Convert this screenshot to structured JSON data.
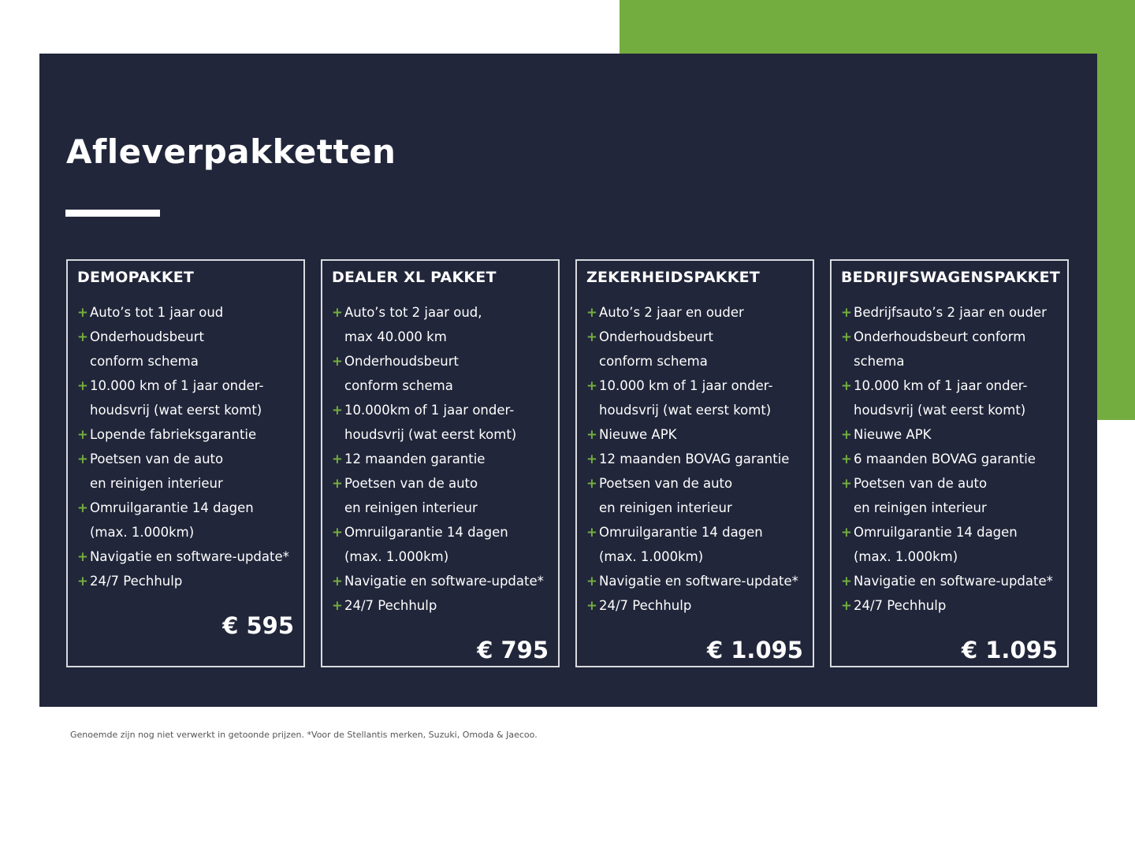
{
  "colors": {
    "navy": "#21263a",
    "green": "#74ad3f",
    "plus": "#74ad3f"
  },
  "title": "Afleverpakketten",
  "packages": [
    {
      "name": "DEMOPAKKET",
      "price": "€ 595",
      "items": [
        "Auto’s tot 1 jaar oud",
        "Onderhoudsbeurt\nconform schema",
        "10.000 km of 1 jaar onder-\nhoudsvrij (wat eerst komt)",
        "Lopende fabrieksgarantie",
        "Poetsen van de auto\nen reinigen interieur",
        "Omruilgarantie 14 dagen\n(max. 1.000km)",
        "Navigatie en software-update*",
        "24/7 Pechhulp"
      ]
    },
    {
      "name": "DEALER XL PAKKET",
      "price": "€ 795",
      "items": [
        "Auto’s tot 2 jaar oud,\nmax 40.000 km",
        "Onderhoudsbeurt\nconform schema",
        "10.000km of 1 jaar onder-\nhoudsvrij (wat eerst komt)",
        "12 maanden garantie",
        "Poetsen van de auto\nen reinigen interieur",
        "Omruilgarantie 14 dagen\n(max. 1.000km)",
        "Navigatie en software-update*",
        "24/7 Pechhulp"
      ]
    },
    {
      "name": "ZEKERHEIDSPAKKET",
      "price": "€ 1.095",
      "items": [
        "Auto’s 2 jaar en ouder",
        "Onderhoudsbeurt\nconform schema",
        "10.000 km of 1 jaar onder-\nhoudsvrij (wat eerst komt)",
        "Nieuwe APK",
        "12 maanden BOVAG garantie",
        "Poetsen van de auto\nen reinigen interieur",
        "Omruilgarantie 14 dagen\n(max. 1.000km)",
        "Navigatie en software-update*",
        "24/7 Pechhulp"
      ]
    },
    {
      "name": "BEDRIJFSWAGENSPAKKET",
      "price": "€ 1.095",
      "items": [
        "Bedrijfsauto’s 2 jaar en ouder",
        "Onderhoudsbeurt conform\nschema",
        "10.000 km of 1 jaar onder-\nhoudsvrij (wat eerst komt)",
        "Nieuwe APK",
        "6 maanden BOVAG garantie",
        "Poetsen van de auto\nen reinigen interieur",
        "Omruilgarantie 14 dagen\n(max. 1.000km)",
        "Navigatie en software-update*",
        "24/7 Pechhulp"
      ]
    }
  ],
  "footnote": "Genoemde zijn nog niet verwerkt in getoonde prijzen. *Voor de Stellantis merken, Suzuki, Omoda & Jaecoo."
}
